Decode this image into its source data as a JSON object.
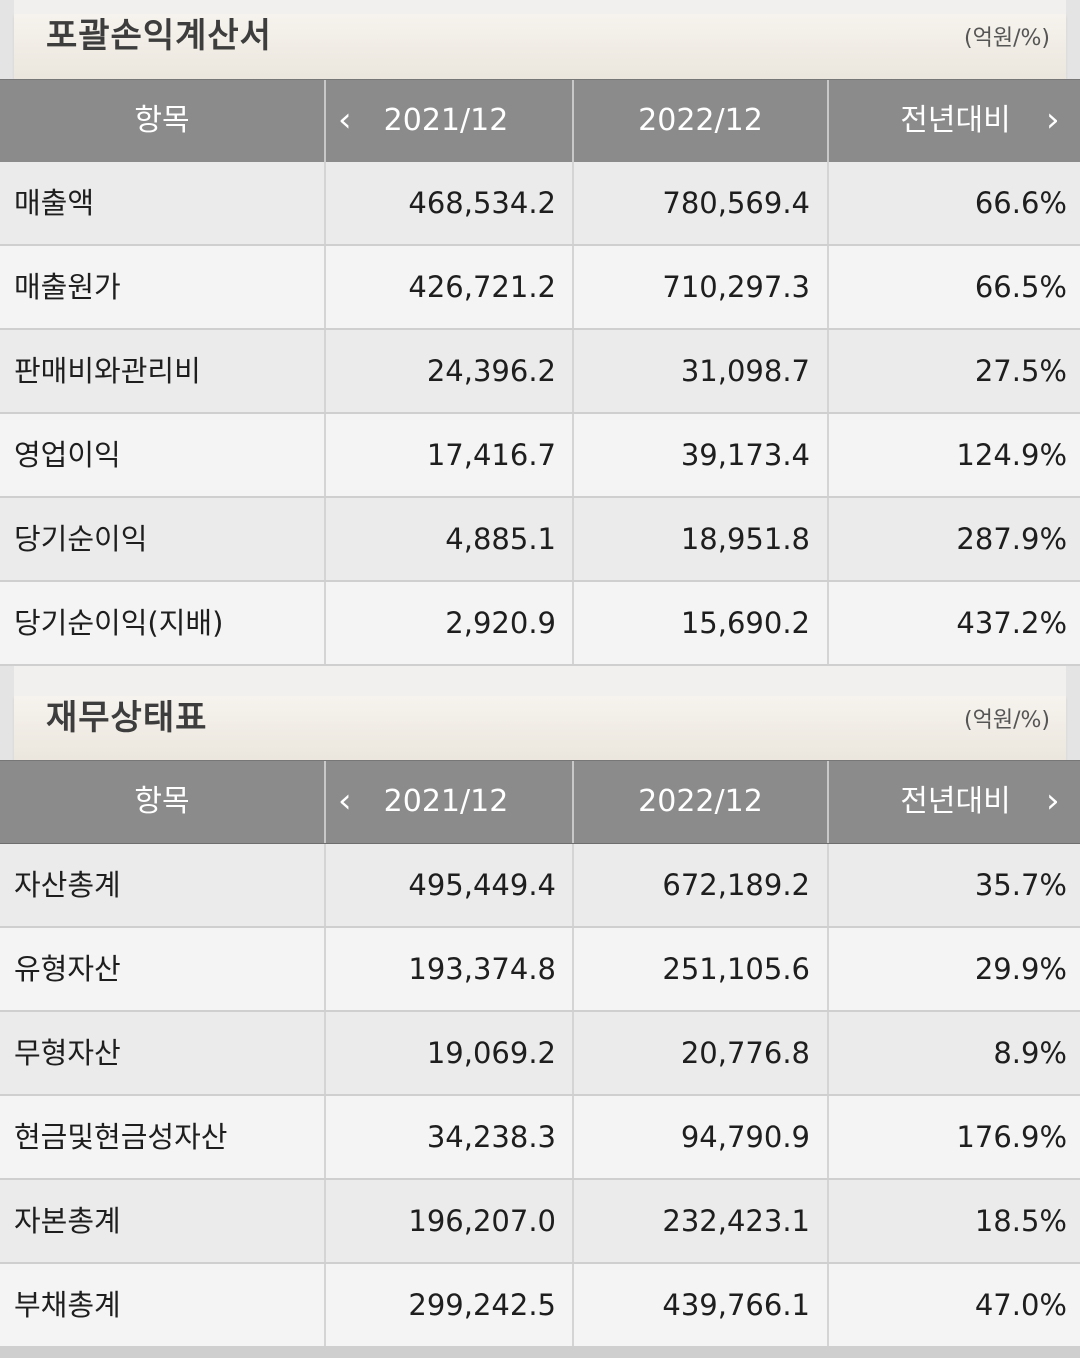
{
  "unit_label": "(억원/%)",
  "columns": {
    "item": "항목",
    "prev_year": "2021/12",
    "curr_year": "2022/12",
    "yoy": "전년대비"
  },
  "income_statement": {
    "title": "포괄손익계산서",
    "rows": [
      {
        "label": "매출액",
        "y2021": "468,534.2",
        "y2022": "780,569.4",
        "yoy": "66.6%"
      },
      {
        "label": "매출원가",
        "y2021": "426,721.2",
        "y2022": "710,297.3",
        "yoy": "66.5%"
      },
      {
        "label": "판매비와관리비",
        "y2021": "24,396.2",
        "y2022": "31,098.7",
        "yoy": "27.5%"
      },
      {
        "label": "영업이익",
        "y2021": "17,416.7",
        "y2022": "39,173.4",
        "yoy": "124.9%"
      },
      {
        "label": "당기순이익",
        "y2021": "4,885.1",
        "y2022": "18,951.8",
        "yoy": "287.9%"
      },
      {
        "label": "당기순이익(지배)",
        "y2021": "2,920.9",
        "y2022": "15,690.2",
        "yoy": "437.2%"
      }
    ]
  },
  "balance_sheet": {
    "title": "재무상태표",
    "rows": [
      {
        "label": "자산총계",
        "y2021": "495,449.4",
        "y2022": "672,189.2",
        "yoy": "35.7%"
      },
      {
        "label": "유형자산",
        "y2021": "193,374.8",
        "y2022": "251,105.6",
        "yoy": "29.9%"
      },
      {
        "label": "무형자산",
        "y2021": "19,069.2",
        "y2022": "20,776.8",
        "yoy": "8.9%"
      },
      {
        "label": "현금및현금성자산",
        "y2021": "34,238.3",
        "y2022": "94,790.9",
        "yoy": "176.9%"
      },
      {
        "label": "자본총계",
        "y2021": "196,207.0",
        "y2022": "232,423.1",
        "yoy": "18.5%"
      },
      {
        "label": "부채총계",
        "y2021": "299,242.5",
        "y2022": "439,766.1",
        "yoy": "47.0%"
      }
    ]
  },
  "icons": {
    "prev": "chevron-left-icon",
    "next": "chevron-right-icon"
  }
}
